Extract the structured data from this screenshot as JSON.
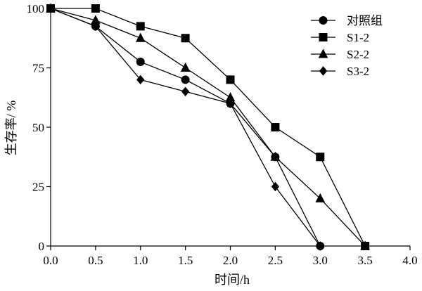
{
  "chart_data": {
    "type": "line",
    "xlabel": "时间/h",
    "ylabel": "生存率/ %",
    "xlim": [
      0,
      4
    ],
    "ylim": [
      0,
      100
    ],
    "x_ticks": [
      "0.0",
      "0.5",
      "1.0",
      "1.5",
      "2.0",
      "2.5",
      "3.0",
      "3.5",
      "4.0"
    ],
    "y_ticks": [
      "0",
      "25",
      "50",
      "75",
      "100"
    ],
    "grid": false,
    "legend_position": "top-right",
    "series": [
      {
        "name": "对照组",
        "marker": "circle",
        "x": [
          0,
          0.5,
          1.0,
          1.5,
          2.0,
          2.5,
          3.0
        ],
        "y": [
          100,
          92.5,
          77.5,
          70,
          60,
          37.5,
          0
        ]
      },
      {
        "name": "S1-2",
        "marker": "square",
        "x": [
          0,
          0.5,
          1.0,
          1.5,
          2.0,
          2.5,
          3.0,
          3.5
        ],
        "y": [
          100,
          100,
          92.5,
          87.5,
          70,
          50,
          37.5,
          0
        ]
      },
      {
        "name": "S2-2",
        "marker": "triangle",
        "x": [
          0,
          0.5,
          1.0,
          1.5,
          2.0,
          2.5,
          3.0,
          3.5
        ],
        "y": [
          100,
          95,
          87.5,
          75,
          62.5,
          37.5,
          20,
          0
        ]
      },
      {
        "name": "S3-2",
        "marker": "diamond",
        "x": [
          0,
          0.5,
          1.0,
          1.5,
          2.0,
          2.5,
          3.0
        ],
        "y": [
          100,
          92.5,
          70,
          65,
          60,
          25,
          0
        ]
      }
    ],
    "colors": {
      "line": "#000000",
      "marker": "#000000"
    }
  }
}
